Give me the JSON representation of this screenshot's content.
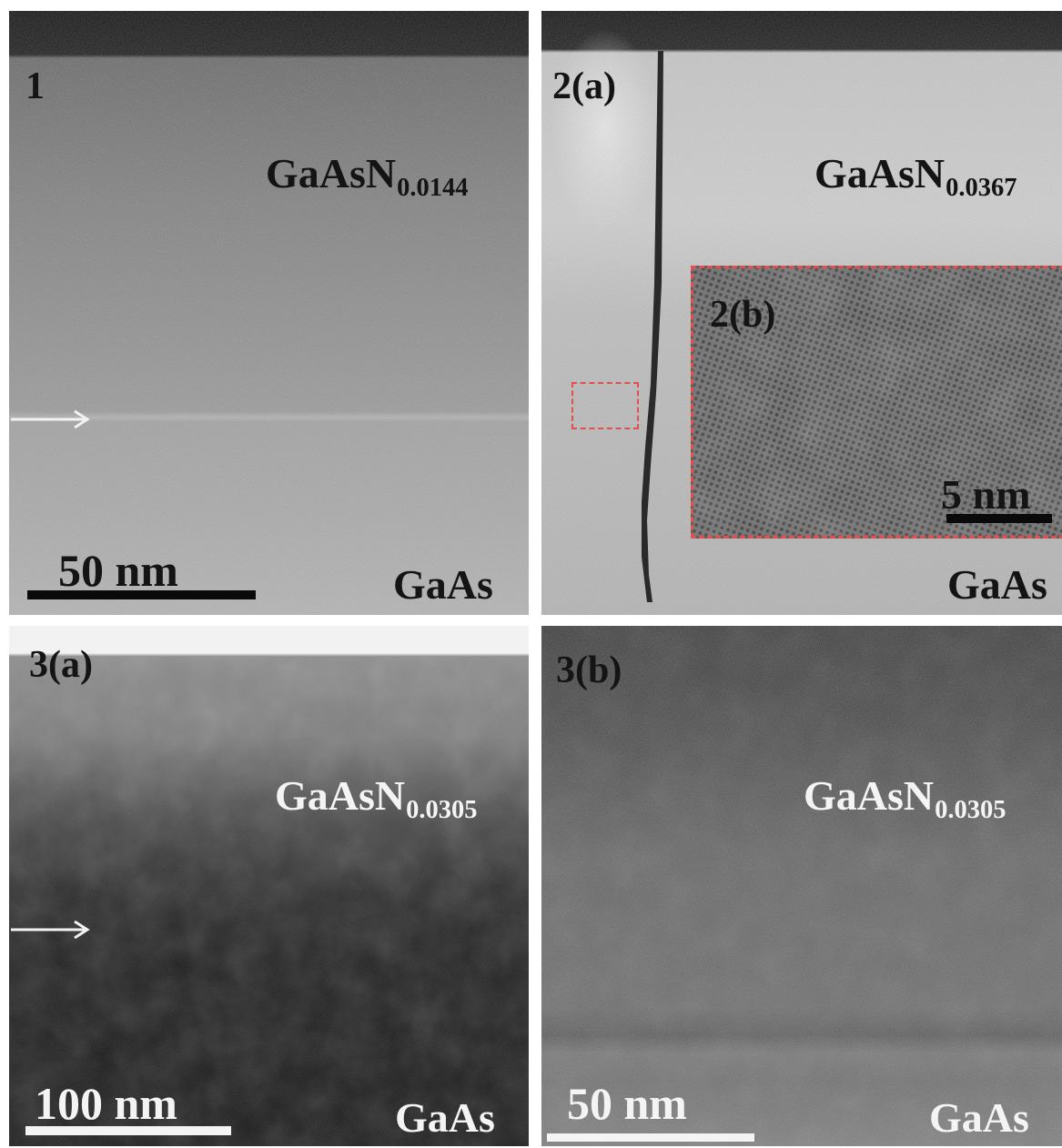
{
  "figure": {
    "panel_1": {
      "tag": "1",
      "film": {
        "base": "GaAsN",
        "sub": "0.0144"
      },
      "substrate": "GaAs",
      "scale_bar": "50 nm"
    },
    "panel_2a": {
      "tag": "2(a)",
      "film": {
        "base": "GaAsN",
        "sub": "0.0367"
      },
      "substrate": "GaAs",
      "inset": {
        "tag": "2(b)",
        "scale_bar": "5 nm"
      },
      "highlight_color": "#e05050"
    },
    "panel_3a": {
      "tag": "3(a)",
      "film": {
        "base": "GaAsN",
        "sub": "0.0305"
      },
      "substrate": "GaAs",
      "scale_bar": "100 nm"
    },
    "panel_3b": {
      "tag": "3(b)",
      "film": {
        "base": "GaAsN",
        "sub": "0.0305"
      },
      "substrate": "GaAs",
      "scale_bar": "50 nm"
    }
  }
}
